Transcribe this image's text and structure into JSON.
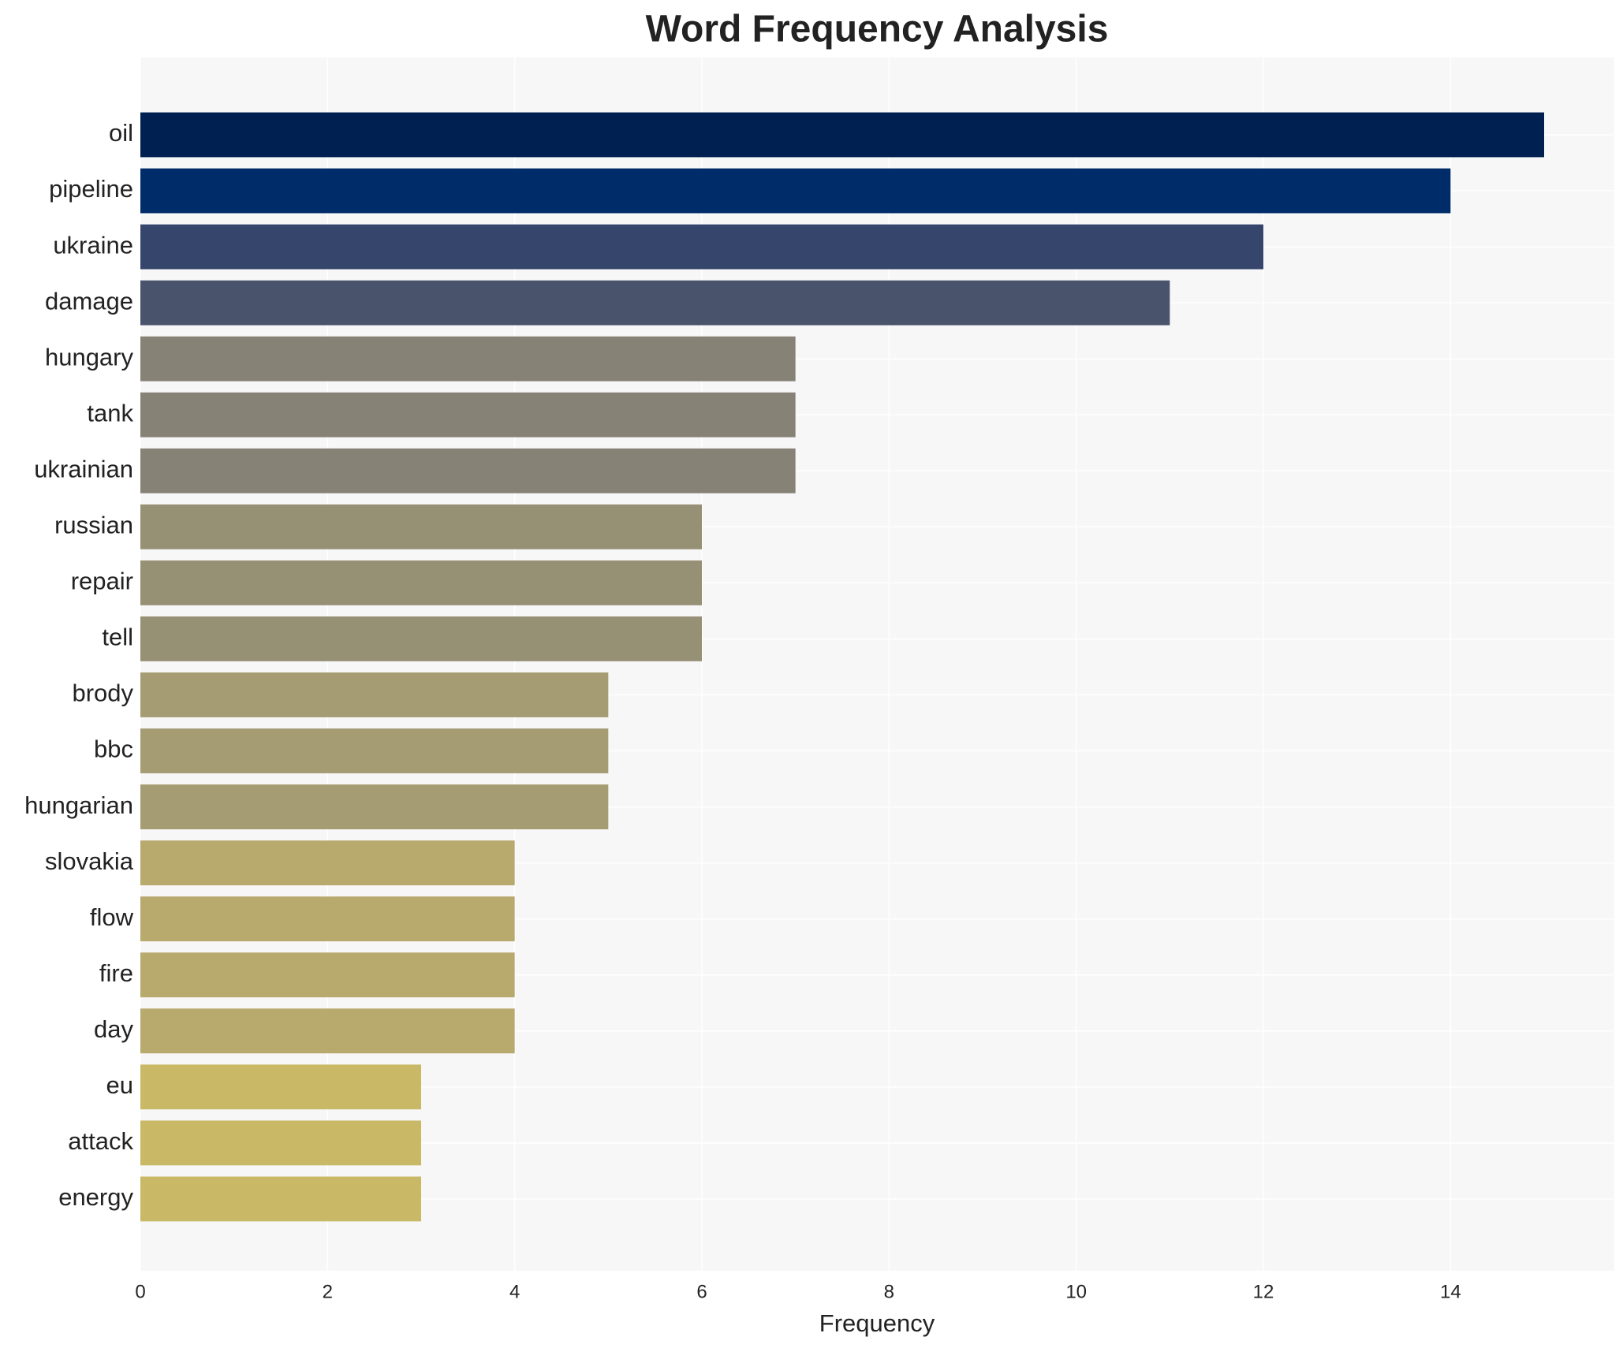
{
  "chart_data": {
    "type": "bar",
    "orientation": "horizontal",
    "title": "Word Frequency Analysis",
    "x_label": "Frequency",
    "categories": [
      "oil",
      "pipeline",
      "ukraine",
      "damage",
      "hungary",
      "tank",
      "ukrainian",
      "russian",
      "repair",
      "tell",
      "brody",
      "bbc",
      "hungarian",
      "slovakia",
      "flow",
      "fire",
      "day",
      "eu",
      "attack",
      "energy"
    ],
    "values": [
      15,
      14,
      12,
      11,
      7,
      7,
      7,
      6,
      6,
      6,
      5,
      5,
      5,
      4,
      4,
      4,
      4,
      3,
      3,
      3
    ],
    "colors": [
      "#002051",
      "#002c6a",
      "#35456c",
      "#49536b",
      "#868276",
      "#868276",
      "#868276",
      "#969075",
      "#969075",
      "#969075",
      "#a59c74",
      "#a59c74",
      "#a59c74",
      "#b8a96d",
      "#b8a96d",
      "#b8a96d",
      "#b8a96d",
      "#c9b866",
      "#c9b866",
      "#c9b866"
    ],
    "xlim": [
      0,
      15.75
    ],
    "xticks": [
      0,
      2,
      4,
      6,
      8,
      10,
      12,
      14
    ],
    "grid": true
  }
}
